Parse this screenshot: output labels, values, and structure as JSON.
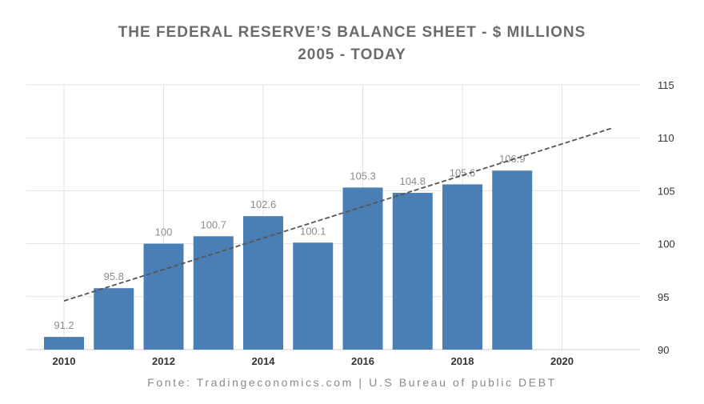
{
  "header": {
    "title_line1": "THE FEDERAL RESERVE’S BALANCE SHEET - $ MILLIONS",
    "title_line2": "2005 - TODAY"
  },
  "footer": {
    "source": "Fonte:  Tradingeconomics.com | U.S Bureau of public DEBT"
  },
  "chart_data": {
    "type": "bar",
    "title": "THE FEDERAL RESERVE’S BALANCE SHEET - $ MILLIONS",
    "subtitle": "2005 - TODAY",
    "x": [
      2010,
      2011,
      2012,
      2013,
      2014,
      2015,
      2016,
      2017,
      2018,
      2019
    ],
    "values": [
      91.2,
      95.8,
      100,
      100.7,
      102.6,
      100.1,
      105.3,
      104.8,
      105.6,
      106.9
    ],
    "value_labels": [
      "91.2",
      "95.8",
      "100",
      "100.7",
      "102.6",
      "100.1",
      "105.3",
      "104.8",
      "105.6",
      "106.9"
    ],
    "x_ticks": [
      "2010",
      "2012",
      "2014",
      "2016",
      "2018",
      "2020"
    ],
    "x_tick_values": [
      2010,
      2012,
      2014,
      2016,
      2018,
      2020
    ],
    "xlim": [
      2010,
      2021
    ],
    "y_ticks": [
      "90",
      "95",
      "100",
      "105",
      "110",
      "115"
    ],
    "y_tick_values": [
      90,
      95,
      100,
      105,
      110,
      115
    ],
    "ylim": [
      90,
      115
    ],
    "y_axis_side": "right",
    "grid": true,
    "trendline": {
      "style": "dashed",
      "x": [
        2010,
        2021
      ],
      "y": [
        94.6,
        110.9
      ]
    },
    "colors": {
      "bar": "#4a7fb5",
      "grid": "#e3e3e3",
      "trend": "#555555",
      "label": "#8c8c8c"
    },
    "xlabel": "",
    "ylabel": ""
  }
}
